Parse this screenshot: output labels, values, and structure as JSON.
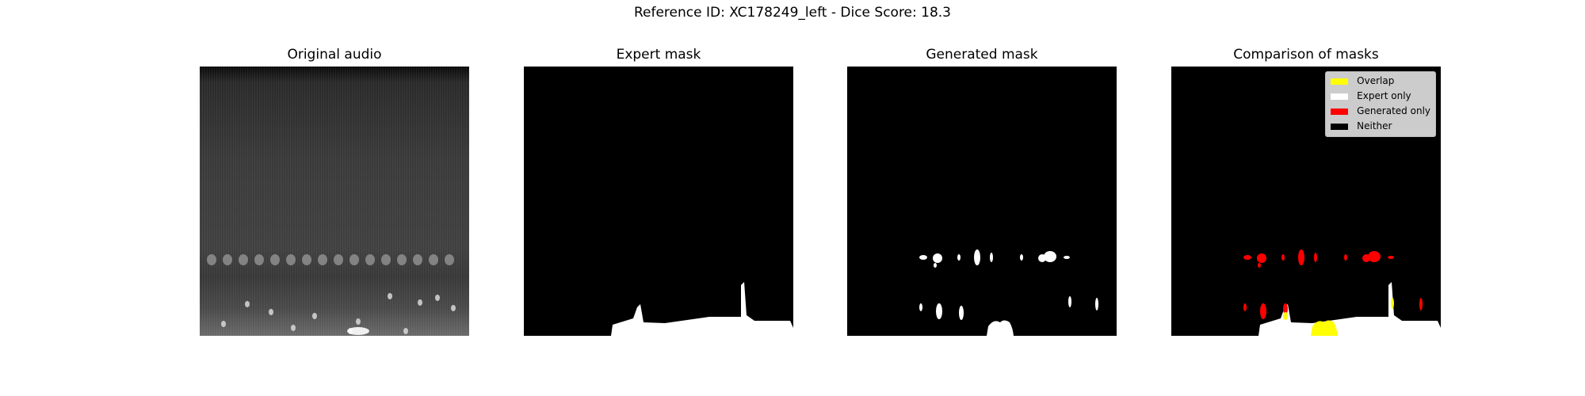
{
  "figure": {
    "suptitle": "Reference ID: XC178249_left - Dice Score: 18.3"
  },
  "chart_data": {
    "type": "image-grid",
    "reference_id": "XC178249_left",
    "dice_score": 18.3,
    "panels": [
      {
        "title": "Original audio",
        "kind": "spectrogram"
      },
      {
        "title": "Expert mask",
        "kind": "binary-mask"
      },
      {
        "title": "Generated mask",
        "kind": "binary-mask"
      },
      {
        "title": "Comparison of masks",
        "kind": "overlay"
      }
    ],
    "legend": {
      "placement": "top-right",
      "items": [
        {
          "label": "Overlap",
          "color": "#ffff00"
        },
        {
          "label": "Expert only",
          "color": "#ffffff"
        },
        {
          "label": "Generated only",
          "color": "#ff0000"
        },
        {
          "label": "Neither",
          "color": "#000000"
        }
      ]
    },
    "axes_visible": false
  }
}
